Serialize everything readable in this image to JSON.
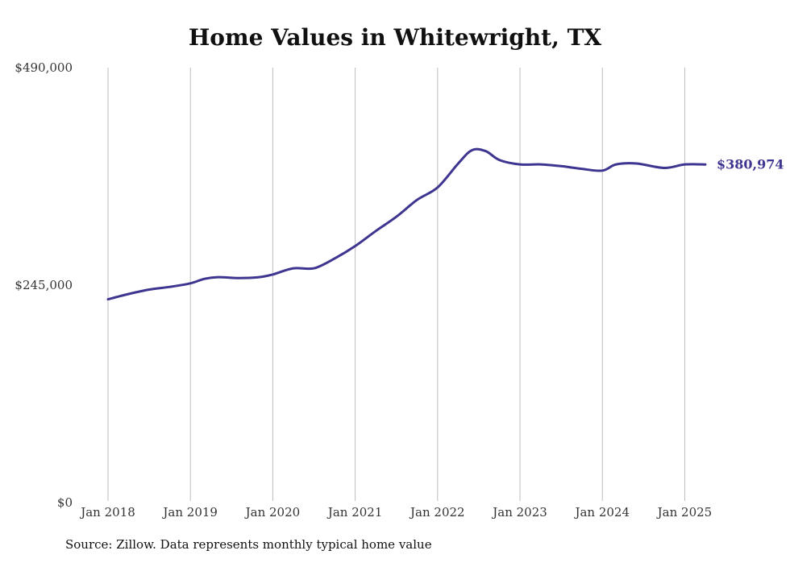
{
  "colors": {
    "line": "#3d3590",
    "grid": "#bdbdbd",
    "text": "#333333"
  },
  "source": "Source: Zillow. Data represents monthly typical home value",
  "chart_data": {
    "type": "line",
    "title": "Home Values in Whitewright, TX",
    "xlabel": "",
    "ylabel": "",
    "grid": "vertical",
    "ylim": [
      0,
      490000
    ],
    "yticks": [
      0,
      245000,
      490000
    ],
    "ytick_labels": [
      "$0",
      "$245,000",
      "$490,000"
    ],
    "x_range": [
      "2018-01",
      "2025-04"
    ],
    "xticks": [
      "2018-01",
      "2019-01",
      "2020-01",
      "2021-01",
      "2022-01",
      "2023-01",
      "2024-01",
      "2025-01"
    ],
    "xtick_labels": [
      "Jan 2018",
      "Jan 2019",
      "Jan 2020",
      "Jan 2021",
      "Jan 2022",
      "Jan 2023",
      "Jan 2024",
      "Jan 2025"
    ],
    "end_label": "$380,974",
    "series": [
      {
        "values": [
          {
            "x": "2018-01",
            "y": 229000
          },
          {
            "x": "2018-04",
            "y": 235000
          },
          {
            "x": "2018-07",
            "y": 240000
          },
          {
            "x": "2018-10",
            "y": 243000
          },
          {
            "x": "2019-01",
            "y": 247000
          },
          {
            "x": "2019-03",
            "y": 252000
          },
          {
            "x": "2019-05",
            "y": 254000
          },
          {
            "x": "2019-08",
            "y": 253000
          },
          {
            "x": "2019-11",
            "y": 254000
          },
          {
            "x": "2020-01",
            "y": 257000
          },
          {
            "x": "2020-04",
            "y": 264000
          },
          {
            "x": "2020-07",
            "y": 264000
          },
          {
            "x": "2020-10",
            "y": 275000
          },
          {
            "x": "2021-01",
            "y": 289000
          },
          {
            "x": "2021-04",
            "y": 306000
          },
          {
            "x": "2021-07",
            "y": 322000
          },
          {
            "x": "2021-10",
            "y": 341000
          },
          {
            "x": "2022-01",
            "y": 355000
          },
          {
            "x": "2022-04",
            "y": 382000
          },
          {
            "x": "2022-06",
            "y": 397000
          },
          {
            "x": "2022-08",
            "y": 396000
          },
          {
            "x": "2022-10",
            "y": 386000
          },
          {
            "x": "2023-01",
            "y": 381000
          },
          {
            "x": "2023-04",
            "y": 381000
          },
          {
            "x": "2023-07",
            "y": 379000
          },
          {
            "x": "2023-10",
            "y": 376000
          },
          {
            "x": "2024-01",
            "y": 374000
          },
          {
            "x": "2024-03",
            "y": 381000
          },
          {
            "x": "2024-06",
            "y": 382000
          },
          {
            "x": "2024-10",
            "y": 377000
          },
          {
            "x": "2025-01",
            "y": 381000
          },
          {
            "x": "2025-04",
            "y": 380974
          }
        ]
      }
    ]
  }
}
